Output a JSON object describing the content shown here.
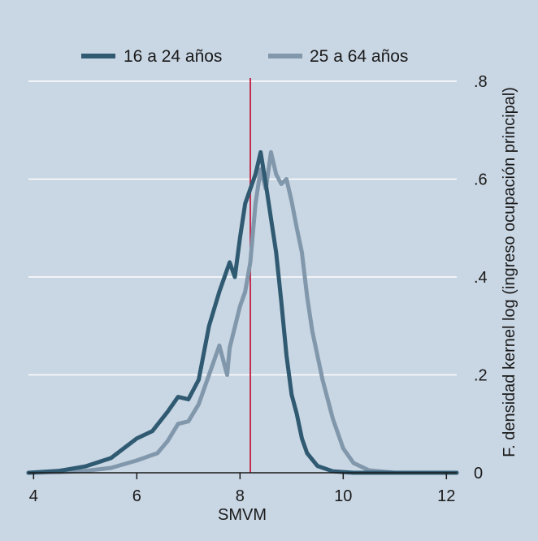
{
  "chart_data": {
    "type": "line",
    "xlabel": "SMVM",
    "ylabel": "F. densidad  kernel log (ingreso ocupación principal)",
    "xlim": [
      3.9,
      12.2
    ],
    "ylim": [
      0,
      0.8
    ],
    "x_ticks": [
      4,
      6,
      8,
      10,
      12
    ],
    "y_ticks": [
      0,
      0.2,
      0.4,
      0.6,
      0.8
    ],
    "x_tick_labels": [
      "4",
      "6",
      "8",
      "10",
      "12"
    ],
    "y_tick_labels": [
      "0",
      ".2",
      ".4",
      ".6",
      ".8"
    ],
    "grid": "horizontal",
    "legend_position": "top",
    "reference_line": {
      "x": 8.2,
      "color": "#c03050"
    },
    "background_color": "#c9d6e3",
    "series": [
      {
        "name": "16 a 24 años",
        "color": "#2f5a72",
        "points": [
          [
            3.9,
            0.0
          ],
          [
            4.5,
            0.004
          ],
          [
            5.0,
            0.013
          ],
          [
            5.5,
            0.03
          ],
          [
            6.0,
            0.07
          ],
          [
            6.3,
            0.085
          ],
          [
            6.6,
            0.125
          ],
          [
            6.8,
            0.155
          ],
          [
            7.0,
            0.15
          ],
          [
            7.2,
            0.19
          ],
          [
            7.4,
            0.3
          ],
          [
            7.6,
            0.37
          ],
          [
            7.8,
            0.43
          ],
          [
            7.9,
            0.4
          ],
          [
            8.0,
            0.48
          ],
          [
            8.1,
            0.55
          ],
          [
            8.2,
            0.58
          ],
          [
            8.3,
            0.61
          ],
          [
            8.4,
            0.655
          ],
          [
            8.5,
            0.59
          ],
          [
            8.6,
            0.52
          ],
          [
            8.7,
            0.45
          ],
          [
            8.8,
            0.35
          ],
          [
            8.9,
            0.24
          ],
          [
            9.0,
            0.16
          ],
          [
            9.1,
            0.12
          ],
          [
            9.2,
            0.07
          ],
          [
            9.3,
            0.04
          ],
          [
            9.5,
            0.014
          ],
          [
            9.8,
            0.003
          ],
          [
            10.2,
            0.0
          ],
          [
            12.2,
            0.0
          ]
        ]
      },
      {
        "name": "25 a 64 años",
        "color": "#8197ab",
        "points": [
          [
            3.9,
            0.0
          ],
          [
            4.5,
            0.001
          ],
          [
            5.0,
            0.004
          ],
          [
            5.5,
            0.01
          ],
          [
            6.0,
            0.025
          ],
          [
            6.4,
            0.04
          ],
          [
            6.6,
            0.065
          ],
          [
            6.8,
            0.1
          ],
          [
            7.0,
            0.105
          ],
          [
            7.2,
            0.14
          ],
          [
            7.4,
            0.2
          ],
          [
            7.6,
            0.26
          ],
          [
            7.75,
            0.2
          ],
          [
            7.8,
            0.255
          ],
          [
            8.0,
            0.34
          ],
          [
            8.1,
            0.37
          ],
          [
            8.2,
            0.43
          ],
          [
            8.3,
            0.55
          ],
          [
            8.4,
            0.62
          ],
          [
            8.5,
            0.58
          ],
          [
            8.6,
            0.655
          ],
          [
            8.7,
            0.61
          ],
          [
            8.8,
            0.59
          ],
          [
            8.9,
            0.6
          ],
          [
            9.0,
            0.555
          ],
          [
            9.1,
            0.5
          ],
          [
            9.2,
            0.45
          ],
          [
            9.3,
            0.36
          ],
          [
            9.4,
            0.29
          ],
          [
            9.6,
            0.19
          ],
          [
            9.8,
            0.11
          ],
          [
            10.0,
            0.05
          ],
          [
            10.2,
            0.02
          ],
          [
            10.5,
            0.005
          ],
          [
            11.0,
            0.0
          ],
          [
            12.2,
            0.0
          ]
        ]
      }
    ]
  }
}
